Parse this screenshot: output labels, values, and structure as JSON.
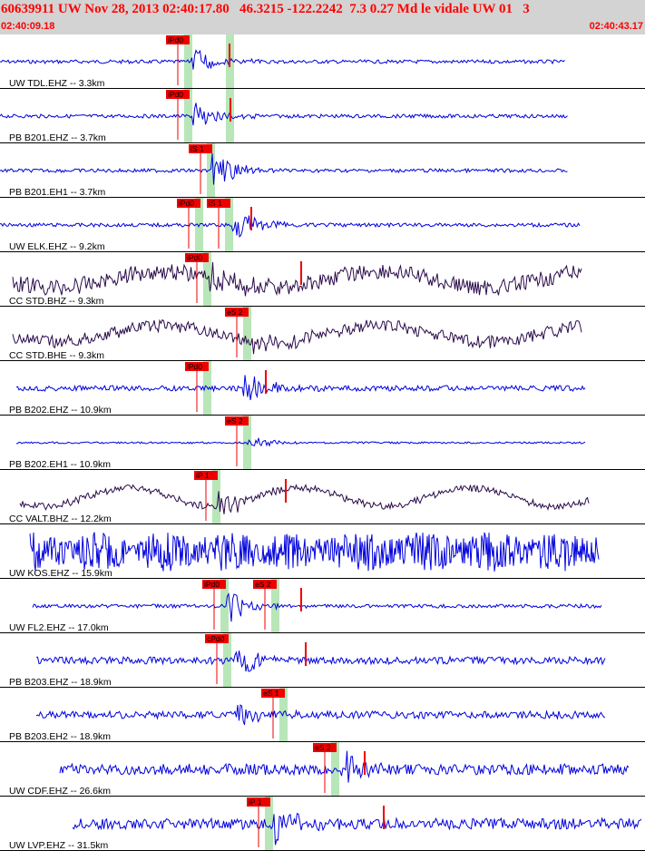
{
  "header": {
    "title": "60639911 UW Nov 28, 2013 02:40:17.80   46.3215 -122.2242  7.3 0.27 Md le vidale UW 01   3",
    "start_time": "02:40:09.18",
    "end_time": "02:40:43.17"
  },
  "colors": {
    "header_bg": "#d3d3d3",
    "header_text": "#ff0000",
    "trace_blue": "#0000dd",
    "trace_dark": "#2a0a4a",
    "pick_box": "#ee0000",
    "pick_band": "#b8e6b8",
    "divider": "#000000"
  },
  "chart_data": {
    "type": "line",
    "xlim": [
      "02:40:09.18",
      "02:40:43.17"
    ],
    "channels": [
      {
        "label": "UW TDL.EHZ -- 3.3km",
        "color": "blue",
        "start": 0,
        "end": 623,
        "amp": 2,
        "noise": "low",
        "picks": [
          {
            "text": "iPd0",
            "x": 183
          },
          {
            "text": "",
            "x": 229
          }
        ],
        "marker": 253,
        "burst": 210,
        "burst_amp": 18
      },
      {
        "label": "PB B201.EHZ -- 3.7km",
        "color": "blue",
        "start": 0,
        "end": 626,
        "amp": 2,
        "noise": "low",
        "picks": [
          {
            "text": "iPd0",
            "x": 183
          },
          {
            "text": "",
            "x": 229
          }
        ],
        "marker": 254,
        "burst": 212,
        "burst_amp": 20
      },
      {
        "label": "PB B201.EH1 -- 3.7km",
        "color": "blue",
        "start": 0,
        "end": 626,
        "amp": 2,
        "noise": "low",
        "picks": [
          {
            "text": "iS 1",
            "x": 208
          }
        ],
        "marker": null,
        "burst": 233,
        "burst_amp": 20
      },
      {
        "label": "UW ELK.EHZ -- 9.2km",
        "color": "blue",
        "start": 0,
        "end": 640,
        "amp": 2,
        "noise": "low",
        "picks": [
          {
            "text": "iPd0",
            "x": 195
          },
          {
            "text": "iS 1",
            "x": 228
          }
        ],
        "marker": 277,
        "burst": 255,
        "burst_amp": 20
      },
      {
        "label": "CC STD.BHZ -- 9.3km",
        "color": "dark",
        "start": 14,
        "end": 641,
        "amp": 9,
        "noise": "high",
        "picks": [
          {
            "text": "iPd0",
            "x": 204
          }
        ],
        "marker": 332,
        "burst": 230,
        "burst_amp": 20
      },
      {
        "label": "CC STD.BHE -- 9.3km",
        "color": "dark",
        "start": 14,
        "end": 641,
        "amp": 7,
        "noise": "high",
        "picks": [
          {
            "text": "eS 2",
            "x": 248
          }
        ],
        "marker": null,
        "burst": 275,
        "burst_amp": 20
      },
      {
        "label": "PB B202.EHZ -- 10.9km",
        "color": "blue",
        "start": 18,
        "end": 645,
        "amp": 3,
        "noise": "med",
        "picks": [
          {
            "text": "iPd0",
            "x": 204
          }
        ],
        "marker": 293,
        "burst": 268,
        "burst_amp": 20
      },
      {
        "label": "PB B202.EH1 -- 10.9km",
        "color": "blue",
        "start": 18,
        "end": 645,
        "amp": 1,
        "noise": "low",
        "picks": [
          {
            "text": "eS 2",
            "x": 248
          }
        ],
        "marker": null,
        "burst": 272,
        "burst_amp": 8
      },
      {
        "label": "CC VALT.BHZ -- 12.2km",
        "color": "dark",
        "start": 22,
        "end": 650,
        "amp": 4,
        "noise": "med",
        "picks": [
          {
            "text": "iP 1",
            "x": 214
          }
        ],
        "marker": 315,
        "burst": 240,
        "burst_amp": 18
      },
      {
        "label": "UW KOS.EHZ -- 15.9km",
        "color": "blue",
        "start": 33,
        "end": 660,
        "amp": 22,
        "noise": "huge",
        "picks": [],
        "marker": null,
        "burst": null,
        "burst_amp": 0
      },
      {
        "label": "UW FL2.EHZ -- 17.0km",
        "color": "blue",
        "start": 36,
        "end": 664,
        "amp": 2,
        "noise": "low",
        "picks": [
          {
            "text": "iPd0",
            "x": 223
          },
          {
            "text": "eS 2",
            "x": 279
          }
        ],
        "marker": 332,
        "burst": 250,
        "burst_amp": 20
      },
      {
        "label": "PB B203.EHZ -- 18.9km",
        "color": "blue",
        "start": 40,
        "end": 668,
        "amp": 4,
        "noise": "med",
        "picks": [
          {
            "text": "cPd0",
            "x": 226
          }
        ],
        "marker": 337,
        "burst": 258,
        "burst_amp": 20
      },
      {
        "label": "PB B203.EH2 -- 18.9km",
        "color": "blue",
        "start": 40,
        "end": 668,
        "amp": 4,
        "noise": "med",
        "picks": [
          {
            "text": "eS 1",
            "x": 288
          }
        ],
        "marker": null,
        "burst": 258,
        "burst_amp": 18
      },
      {
        "label": "UW CDF.EHZ -- 26.6km",
        "color": "blue",
        "start": 66,
        "end": 694,
        "amp": 6,
        "noise": "med",
        "picks": [
          {
            "text": "eS 2",
            "x": 345
          }
        ],
        "marker": 402,
        "burst": 375,
        "burst_amp": 22
      },
      {
        "label": "UW LVP.EHZ -- 31.5km",
        "color": "blue",
        "start": 80,
        "end": 708,
        "amp": 6,
        "noise": "med",
        "picks": [
          {
            "text": "iP 1",
            "x": 272
          }
        ],
        "marker": 423,
        "burst": 300,
        "burst_amp": 22
      }
    ]
  }
}
